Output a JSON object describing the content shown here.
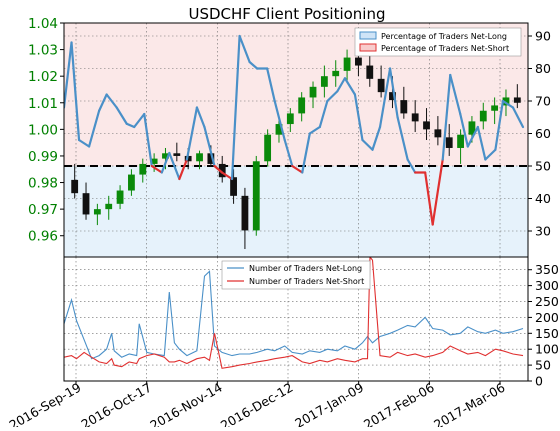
{
  "colors": {
    "price_axis": "#008000",
    "net_long": "#4a90c8",
    "net_short": "#e03030",
    "dark_blue": "#1f5fa8",
    "long_band": "#e6f2fb",
    "short_band": "#fbe8e8",
    "candle_up": "#0a8a0a",
    "candle_down": "#111111"
  },
  "chart_data": [
    {
      "type": "line",
      "title": "USDCHF Client Positioning",
      "left_axis": {
        "ticks": [
          "0.96",
          "0.97",
          "0.98",
          "0.99",
          "1.00",
          "1.01",
          "1.02",
          "1.03",
          "1.04"
        ],
        "ylim": [
          0.952,
          1.04
        ]
      },
      "right_axis": {
        "ticks": [
          "30",
          "40",
          "50",
          "60",
          "70",
          "80",
          "90"
        ],
        "ylim": [
          22,
          94
        ]
      },
      "threshold": 50,
      "legend": [
        "Percentage of Traders Net-Long",
        "Percentage of Traders Net-Short"
      ],
      "legend_position": "top-right",
      "grid": true,
      "x": [
        0,
        3,
        6,
        10,
        14,
        17,
        21,
        25,
        28,
        32,
        35,
        39,
        42,
        46,
        49,
        53,
        56,
        60,
        63,
        67,
        70,
        74,
        77,
        81,
        84,
        88,
        91,
        95,
        98,
        102,
        105,
        109,
        112,
        116,
        119,
        123,
        126,
        130,
        133,
        137,
        140,
        144,
        147,
        151,
        154,
        158,
        161,
        165,
        168,
        172,
        175,
        179,
        183
      ],
      "series": [
        {
          "name": "Percentage of Traders Net-Long",
          "values": [
            68,
            88,
            58,
            56,
            67,
            72,
            68,
            63,
            62,
            66,
            50,
            48,
            54,
            46,
            52,
            68,
            62,
            50,
            48,
            46,
            90,
            82,
            80,
            80,
            70,
            58,
            50,
            48,
            60,
            62,
            70,
            73,
            77,
            72,
            58,
            55,
            62,
            80,
            65,
            52,
            48,
            48,
            32,
            52,
            78,
            66,
            56,
            62,
            52,
            55,
            70,
            68,
            62
          ]
        }
      ],
      "candles": [
        {
          "o": 0.981,
          "h": 0.987,
          "l": 0.974,
          "c": 0.976
        },
        {
          "o": 0.976,
          "h": 0.98,
          "l": 0.966,
          "c": 0.968
        },
        {
          "o": 0.968,
          "h": 0.972,
          "l": 0.964,
          "c": 0.97
        },
        {
          "o": 0.97,
          "h": 0.975,
          "l": 0.966,
          "c": 0.972
        },
        {
          "o": 0.972,
          "h": 0.979,
          "l": 0.97,
          "c": 0.977
        },
        {
          "o": 0.977,
          "h": 0.985,
          "l": 0.975,
          "c": 0.983
        },
        {
          "o": 0.983,
          "h": 0.989,
          "l": 0.98,
          "c": 0.987
        },
        {
          "o": 0.987,
          "h": 0.991,
          "l": 0.984,
          "c": 0.989
        },
        {
          "o": 0.989,
          "h": 0.993,
          "l": 0.985,
          "c": 0.991
        },
        {
          "o": 0.991,
          "h": 0.995,
          "l": 0.988,
          "c": 0.99
        },
        {
          "o": 0.99,
          "h": 0.993,
          "l": 0.985,
          "c": 0.988
        },
        {
          "o": 0.988,
          "h": 0.992,
          "l": 0.985,
          "c": 0.991
        },
        {
          "o": 0.991,
          "h": 0.994,
          "l": 0.986,
          "c": 0.987
        },
        {
          "o": 0.987,
          "h": 0.99,
          "l": 0.98,
          "c": 0.982
        },
        {
          "o": 0.982,
          "h": 0.985,
          "l": 0.972,
          "c": 0.975
        },
        {
          "o": 0.975,
          "h": 0.978,
          "l": 0.955,
          "c": 0.962
        },
        {
          "o": 0.962,
          "h": 0.99,
          "l": 0.96,
          "c": 0.988
        },
        {
          "o": 0.988,
          "h": 1.0,
          "l": 0.986,
          "c": 0.998
        },
        {
          "o": 0.998,
          "h": 1.004,
          "l": 0.995,
          "c": 1.002
        },
        {
          "o": 1.002,
          "h": 1.008,
          "l": 0.999,
          "c": 1.006
        },
        {
          "o": 1.006,
          "h": 1.014,
          "l": 1.003,
          "c": 1.012
        },
        {
          "o": 1.012,
          "h": 1.018,
          "l": 1.008,
          "c": 1.016
        },
        {
          "o": 1.016,
          "h": 1.024,
          "l": 1.012,
          "c": 1.02
        },
        {
          "o": 1.02,
          "h": 1.026,
          "l": 1.016,
          "c": 1.022
        },
        {
          "o": 1.022,
          "h": 1.03,
          "l": 1.018,
          "c": 1.027
        },
        {
          "o": 1.027,
          "h": 1.033,
          "l": 1.02,
          "c": 1.024
        },
        {
          "o": 1.024,
          "h": 1.029,
          "l": 1.016,
          "c": 1.019
        },
        {
          "o": 1.019,
          "h": 1.024,
          "l": 1.012,
          "c": 1.014
        },
        {
          "o": 1.014,
          "h": 1.02,
          "l": 1.008,
          "c": 1.011
        },
        {
          "o": 1.011,
          "h": 1.016,
          "l": 1.004,
          "c": 1.006
        },
        {
          "o": 1.006,
          "h": 1.011,
          "l": 0.999,
          "c": 1.003
        },
        {
          "o": 1.003,
          "h": 1.008,
          "l": 0.996,
          "c": 1.0
        },
        {
          "o": 1.0,
          "h": 1.005,
          "l": 0.994,
          "c": 0.997
        },
        {
          "o": 0.997,
          "h": 1.002,
          "l": 0.99,
          "c": 0.993
        },
        {
          "o": 0.993,
          "h": 1.0,
          "l": 0.987,
          "c": 0.998
        },
        {
          "o": 0.998,
          "h": 1.005,
          "l": 0.995,
          "c": 1.003
        },
        {
          "o": 1.003,
          "h": 1.01,
          "l": 1.0,
          "c": 1.007
        },
        {
          "o": 1.007,
          "h": 1.012,
          "l": 1.002,
          "c": 1.009
        },
        {
          "o": 1.009,
          "h": 1.015,
          "l": 1.005,
          "c": 1.012
        },
        {
          "o": 1.012,
          "h": 1.017,
          "l": 1.008,
          "c": 1.01
        }
      ]
    },
    {
      "type": "line",
      "right_axis": {
        "ticks": [
          "0",
          "50",
          "100",
          "150",
          "200",
          "250",
          "300",
          "350"
        ],
        "ylim": [
          0,
          390
        ]
      },
      "x_ticks": [
        "2016-Sep-19",
        "2016-Oct-17",
        "2016-Nov-14",
        "2016-Dec-12",
        "2017-Jan-09",
        "2017-Feb-06",
        "2017-Mar-06"
      ],
      "legend": [
        "Number of Traders Net-Long",
        "Number of Traders Net-Short"
      ],
      "legend_position": "top-center",
      "grid": true,
      "x": [
        0,
        3,
        5,
        8,
        11,
        14,
        17,
        19,
        20,
        23,
        26,
        29,
        30,
        33,
        36,
        40,
        42,
        44,
        46,
        49,
        53,
        56,
        58,
        60,
        63,
        67,
        70,
        74,
        77,
        81,
        84,
        88,
        91,
        95,
        98,
        102,
        105,
        109,
        112,
        116,
        119,
        121,
        122,
        123,
        126,
        130,
        133,
        137,
        140,
        144,
        147,
        151,
        154,
        158,
        161,
        165,
        168,
        172,
        175,
        179,
        183
      ],
      "series": [
        {
          "name": "Number of Traders Net-Long",
          "values": [
            180,
            255,
            190,
            130,
            70,
            80,
            100,
            150,
            95,
            75,
            85,
            80,
            180,
            90,
            85,
            80,
            280,
            120,
            100,
            80,
            95,
            330,
            345,
            110,
            90,
            80,
            85,
            85,
            90,
            100,
            95,
            110,
            90,
            85,
            95,
            90,
            100,
            95,
            110,
            100,
            120,
            140,
            130,
            120,
            140,
            150,
            160,
            175,
            170,
            200,
            165,
            160,
            145,
            150,
            170,
            155,
            150,
            160,
            150,
            155,
            165
          ]
        },
        {
          "name": "Number of Traders Net-Short",
          "values": [
            75,
            80,
            70,
            90,
            75,
            60,
            55,
            70,
            50,
            45,
            60,
            55,
            70,
            80,
            85,
            75,
            60,
            60,
            65,
            55,
            70,
            75,
            65,
            150,
            40,
            45,
            50,
            55,
            60,
            65,
            70,
            75,
            80,
            60,
            55,
            65,
            60,
            70,
            65,
            60,
            70,
            70,
            390,
            380,
            80,
            75,
            90,
            80,
            85,
            75,
            80,
            90,
            110,
            95,
            85,
            90,
            80,
            100,
            95,
            85,
            80
          ]
        }
      ]
    }
  ]
}
